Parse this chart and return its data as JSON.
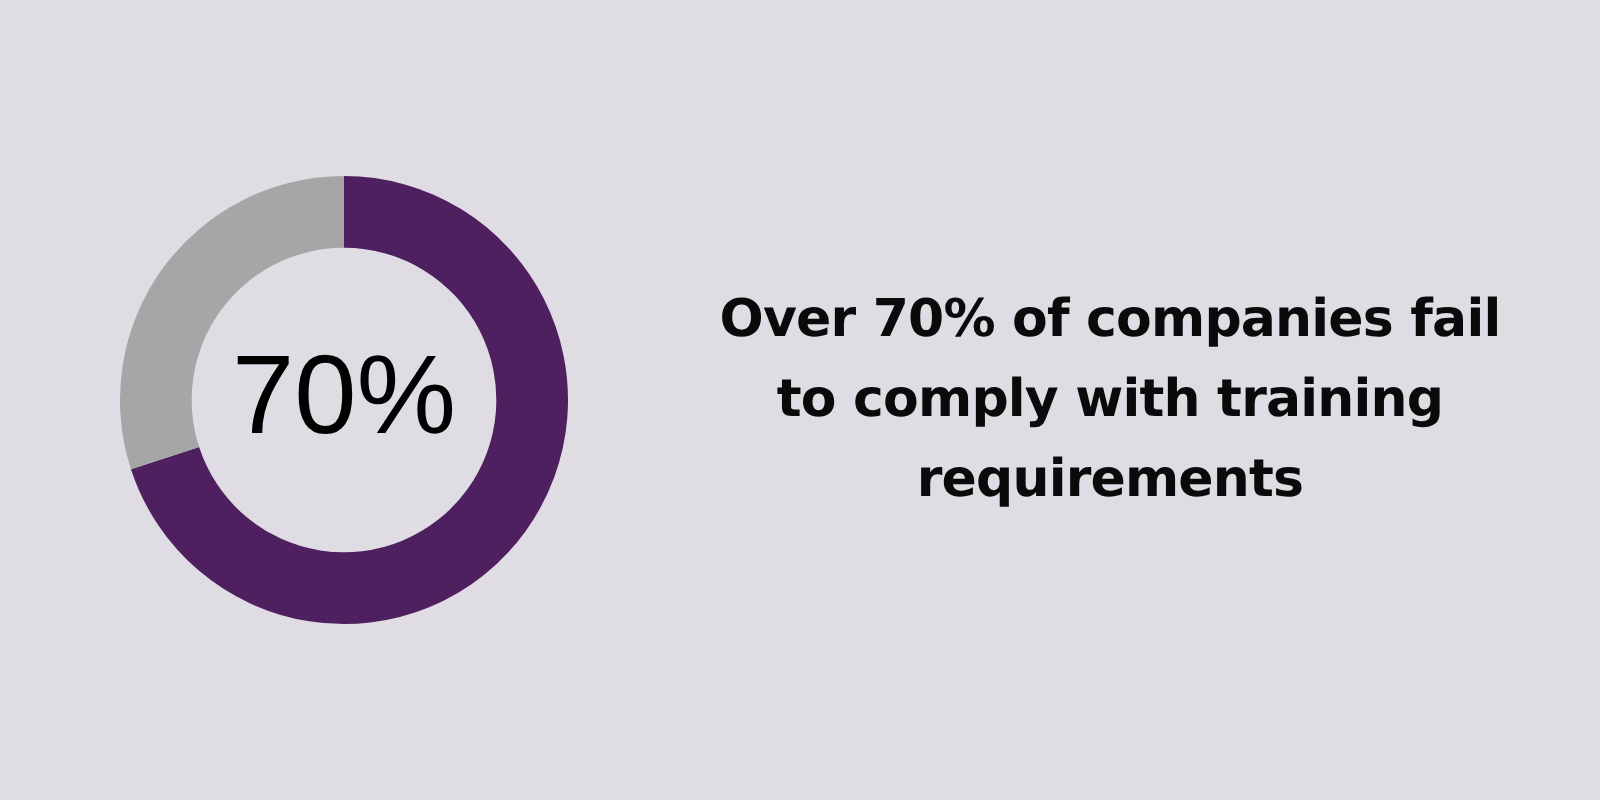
{
  "chart_data": {
    "type": "donut",
    "title": "Over 70% of companies fail to comply with training requirements",
    "categories": [
      null,
      null
    ],
    "values": [
      70,
      30
    ],
    "colors": [
      "#4f2060",
      "#a6a6a6"
    ],
    "value_labels": [
      "70%",
      null
    ],
    "legend": false
  }
}
